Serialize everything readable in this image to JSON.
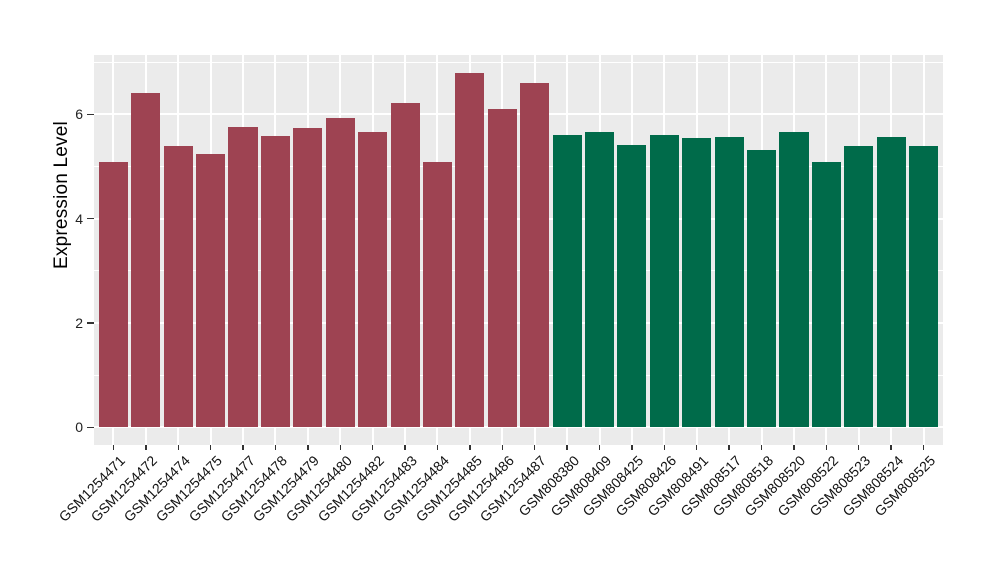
{
  "figure": {
    "background": "#FFFFFF",
    "axis_text_color": "#222222",
    "tick_color": "#333333"
  },
  "chart_data": {
    "type": "bar",
    "title": "",
    "xlabel": "",
    "ylabel": "Expression Level",
    "ylim": [
      -0.33,
      7.14
    ],
    "yticks": [
      0,
      2,
      4,
      6
    ],
    "yticks_minor": [
      1,
      3,
      5,
      7
    ],
    "grid": {
      "horizontal_major": true,
      "horizontal_minor": true,
      "vertical_at_categories": true,
      "grid_color": "#FFFFFF",
      "panel_background": "#EBEBEB"
    },
    "legend": "none",
    "x_label_angle_degrees": 45,
    "categories": [
      "GSM1254471",
      "GSM1254472",
      "GSM1254474",
      "GSM1254475",
      "GSM1254477",
      "GSM1254478",
      "GSM1254479",
      "GSM1254480",
      "GSM1254482",
      "GSM1254483",
      "GSM1254484",
      "GSM1254485",
      "GSM1254486",
      "GSM1254487",
      "GSM808380",
      "GSM808409",
      "GSM808425",
      "GSM808426",
      "GSM808491",
      "GSM808517",
      "GSM808518",
      "GSM808520",
      "GSM808522",
      "GSM808523",
      "GSM808524",
      "GSM808525"
    ],
    "values": [
      5.08,
      6.42,
      5.39,
      5.25,
      5.76,
      5.58,
      5.74,
      5.94,
      5.67,
      6.21,
      5.08,
      6.8,
      6.1,
      6.61,
      5.6,
      5.66,
      5.41,
      5.6,
      5.55,
      5.56,
      5.31,
      5.67,
      5.09,
      5.39,
      5.57,
      5.4
    ],
    "bar_groups": [
      0,
      0,
      0,
      0,
      0,
      0,
      0,
      0,
      0,
      0,
      0,
      0,
      0,
      0,
      1,
      1,
      1,
      1,
      1,
      1,
      1,
      1,
      1,
      1,
      1,
      1
    ],
    "groups": [
      {
        "name": "red-group",
        "color": "#9E4352"
      },
      {
        "name": "green-group",
        "color": "#006B4A"
      }
    ]
  }
}
